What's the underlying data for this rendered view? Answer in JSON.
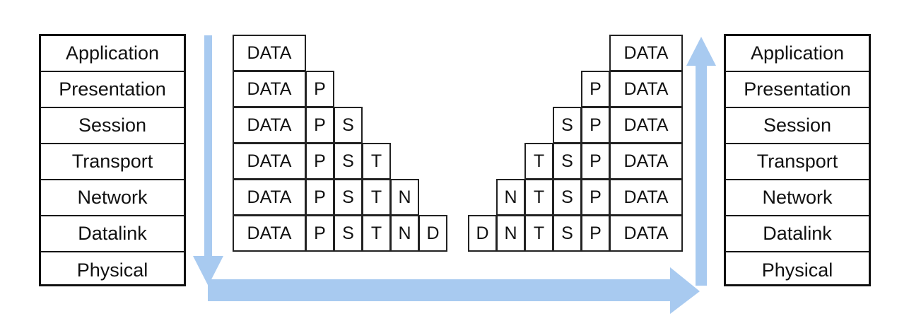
{
  "sender_stack": {
    "layers": [
      "Application",
      "Presentation",
      "Session",
      "Transport",
      "Network",
      "Datalink",
      "Physical"
    ]
  },
  "receiver_stack": {
    "layers": [
      "Application",
      "Presentation",
      "Session",
      "Transport",
      "Network",
      "Datalink",
      "Physical"
    ]
  },
  "encapsulation_rows": [
    [
      "DATA"
    ],
    [
      "DATA",
      "P"
    ],
    [
      "DATA",
      "P",
      "S"
    ],
    [
      "DATA",
      "P",
      "S",
      "T"
    ],
    [
      "DATA",
      "P",
      "S",
      "T",
      "N"
    ],
    [
      "DATA",
      "P",
      "S",
      "T",
      "N",
      "D"
    ]
  ],
  "decapsulation_rows": [
    [
      "DATA"
    ],
    [
      "P",
      "DATA"
    ],
    [
      "S",
      "P",
      "DATA"
    ],
    [
      "T",
      "S",
      "P",
      "DATA"
    ],
    [
      "N",
      "T",
      "S",
      "P",
      "DATA"
    ],
    [
      "D",
      "N",
      "T",
      "S",
      "P",
      "DATA"
    ]
  ],
  "colors": {
    "arrow": "#a8caf0",
    "border": "#111111"
  }
}
